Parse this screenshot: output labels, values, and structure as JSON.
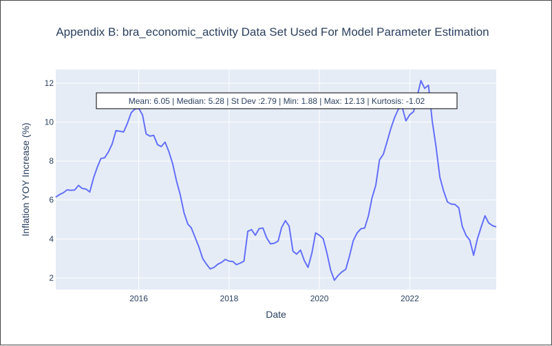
{
  "chart_data": {
    "type": "line",
    "title": "Appendix B: bra_economic_activity Data Set Used For Model Parameter Estimation",
    "xlabel": "Date",
    "ylabel": "Inflation YOY Increase (%)",
    "xlim": [
      "2014-03-01",
      "2023-12-01"
    ],
    "ylim": [
      1.4,
      12.7
    ],
    "x_ticks": [
      {
        "label": "2016",
        "date": "2016-01-01"
      },
      {
        "label": "2018",
        "date": "2018-01-01"
      },
      {
        "label": "2020",
        "date": "2020-01-01"
      },
      {
        "label": "2022",
        "date": "2022-01-01"
      }
    ],
    "y_ticks": [
      {
        "label": "2",
        "value": 2
      },
      {
        "label": "4",
        "value": 4
      },
      {
        "label": "6",
        "value": 6
      },
      {
        "label": "8",
        "value": 8
      },
      {
        "label": "10",
        "value": 10
      },
      {
        "label": "12",
        "value": 12
      }
    ],
    "grid": true,
    "line_color": "#636efa",
    "plot_background": "#e5ecf6",
    "annotation": "Mean: 6.05 | Median: 5.28 | St Dev :2.79 | Min: 1.88 | Max: 12.13 | Kurtosis: -1.02",
    "x": [
      "2014-03-01",
      "2014-04-01",
      "2014-05-01",
      "2014-06-01",
      "2014-07-01",
      "2014-08-01",
      "2014-09-01",
      "2014-10-01",
      "2014-11-01",
      "2014-12-01",
      "2015-01-01",
      "2015-02-01",
      "2015-03-01",
      "2015-04-01",
      "2015-05-01",
      "2015-06-01",
      "2015-07-01",
      "2015-08-01",
      "2015-09-01",
      "2015-10-01",
      "2015-11-01",
      "2015-12-01",
      "2016-01-01",
      "2016-02-01",
      "2016-03-01",
      "2016-04-01",
      "2016-05-01",
      "2016-06-01",
      "2016-07-01",
      "2016-08-01",
      "2016-09-01",
      "2016-10-01",
      "2016-11-01",
      "2016-12-01",
      "2017-01-01",
      "2017-02-01",
      "2017-03-01",
      "2017-04-01",
      "2017-05-01",
      "2017-06-01",
      "2017-07-01",
      "2017-08-01",
      "2017-09-01",
      "2017-10-01",
      "2017-11-01",
      "2017-12-01",
      "2018-01-01",
      "2018-02-01",
      "2018-03-01",
      "2018-04-01",
      "2018-05-01",
      "2018-06-01",
      "2018-07-01",
      "2018-08-01",
      "2018-09-01",
      "2018-10-01",
      "2018-11-01",
      "2018-12-01",
      "2019-01-01",
      "2019-02-01",
      "2019-03-01",
      "2019-04-01",
      "2019-05-01",
      "2019-06-01",
      "2019-07-01",
      "2019-08-01",
      "2019-09-01",
      "2019-10-01",
      "2019-11-01",
      "2019-12-01",
      "2020-01-01",
      "2020-02-01",
      "2020-03-01",
      "2020-04-01",
      "2020-05-01",
      "2020-06-01",
      "2020-07-01",
      "2020-08-01",
      "2020-09-01",
      "2020-10-01",
      "2020-11-01",
      "2020-12-01",
      "2021-01-01",
      "2021-02-01",
      "2021-03-01",
      "2021-04-01",
      "2021-05-01",
      "2021-06-01",
      "2021-07-01",
      "2021-08-01",
      "2021-09-01",
      "2021-10-01",
      "2021-11-01",
      "2021-12-01",
      "2022-01-01",
      "2022-02-01",
      "2022-03-01",
      "2022-04-01",
      "2022-05-01",
      "2022-06-01",
      "2022-07-01",
      "2022-08-01",
      "2022-09-01",
      "2022-10-01",
      "2022-11-01",
      "2022-12-01",
      "2023-01-01",
      "2023-02-01",
      "2023-03-01",
      "2023-04-01",
      "2023-05-01",
      "2023-06-01",
      "2023-07-01",
      "2023-08-01",
      "2023-09-01",
      "2023-10-01",
      "2023-11-01",
      "2023-12-01"
    ],
    "values": [
      6.15,
      6.28,
      6.37,
      6.52,
      6.5,
      6.51,
      6.75,
      6.59,
      6.56,
      6.41,
      7.14,
      7.7,
      8.13,
      8.17,
      8.47,
      8.89,
      9.56,
      9.53,
      9.49,
      9.93,
      10.48,
      10.67,
      10.71,
      10.36,
      9.39,
      9.28,
      9.32,
      8.84,
      8.74,
      8.97,
      8.48,
      7.87,
      6.99,
      6.29,
      5.35,
      4.76,
      4.57,
      4.08,
      3.6,
      3.0,
      2.71,
      2.46,
      2.54,
      2.7,
      2.8,
      2.95,
      2.86,
      2.84,
      2.68,
      2.76,
      2.86,
      4.39,
      4.48,
      4.19,
      4.53,
      4.56,
      4.05,
      3.75,
      3.78,
      3.89,
      4.58,
      4.94,
      4.66,
      3.37,
      3.22,
      3.43,
      2.89,
      2.54,
      3.27,
      4.31,
      4.19,
      4.01,
      3.3,
      2.4,
      1.88,
      2.13,
      2.31,
      2.44,
      3.14,
      3.92,
      4.31,
      4.52,
      4.56,
      5.2,
      6.1,
      6.76,
      8.06,
      8.35,
      8.99,
      9.68,
      10.25,
      10.67,
      10.74,
      10.06,
      10.38,
      10.54,
      11.3,
      12.13,
      11.73,
      11.89,
      10.07,
      8.73,
      7.17,
      6.47,
      5.9,
      5.79,
      5.77,
      5.6,
      4.65,
      4.18,
      3.94,
      3.16,
      3.99,
      4.61,
      5.19,
      4.82,
      4.68,
      4.62
    ]
  }
}
